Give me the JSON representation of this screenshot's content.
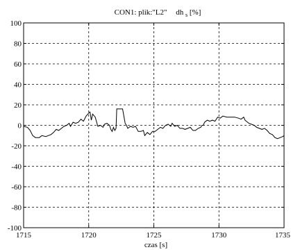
{
  "chart_data": {
    "type": "line",
    "title_main": "CON1: plik:\"L2\"",
    "title_var": "dh",
    "title_sub": "s",
    "title_unit": "[%]",
    "xlabel": "czas [s]",
    "ylabel": "",
    "xlim": [
      1715,
      1735
    ],
    "ylim": [
      -100,
      100
    ],
    "grid": true,
    "x_ticks": [
      1715,
      1720,
      1725,
      1730,
      1735
    ],
    "y_ticks": [
      100,
      80,
      60,
      40,
      20,
      0,
      -20,
      -40,
      -60,
      -80,
      -100
    ],
    "series": [
      {
        "color": "#000000",
        "points": [
          [
            1715.0,
            -1
          ],
          [
            1715.3,
            -2
          ],
          [
            1715.5,
            -5
          ],
          [
            1715.7,
            -10
          ],
          [
            1715.9,
            -12
          ],
          [
            1716.2,
            -12
          ],
          [
            1716.4,
            -10
          ],
          [
            1716.7,
            -11
          ],
          [
            1716.9,
            -10
          ],
          [
            1717.1,
            -9
          ],
          [
            1717.3,
            -7
          ],
          [
            1717.5,
            -4
          ],
          [
            1717.7,
            -5
          ],
          [
            1717.9,
            -3
          ],
          [
            1718.1,
            -1
          ],
          [
            1718.3,
            0
          ],
          [
            1718.5,
            2
          ],
          [
            1718.6,
            -1
          ],
          [
            1718.8,
            3
          ],
          [
            1719.0,
            2
          ],
          [
            1719.2,
            3
          ],
          [
            1719.4,
            6
          ],
          [
            1719.6,
            4
          ],
          [
            1719.8,
            9
          ],
          [
            1720.0,
            12
          ],
          [
            1720.1,
            13
          ],
          [
            1720.2,
            5
          ],
          [
            1720.3,
            11
          ],
          [
            1720.5,
            8
          ],
          [
            1720.7,
            -1
          ],
          [
            1720.9,
            0
          ],
          [
            1721.1,
            -2
          ],
          [
            1721.2,
            1
          ],
          [
            1721.4,
            2
          ],
          [
            1721.6,
            0
          ],
          [
            1721.7,
            -4
          ],
          [
            1721.8,
            -6
          ],
          [
            1721.9,
            -2
          ],
          [
            1722.0,
            -5
          ],
          [
            1722.1,
            -3
          ],
          [
            1722.15,
            16
          ],
          [
            1722.6,
            16
          ],
          [
            1722.8,
            2
          ],
          [
            1722.9,
            0
          ],
          [
            1723.0,
            -3
          ],
          [
            1723.2,
            -1
          ],
          [
            1723.4,
            -2
          ],
          [
            1723.6,
            -1
          ],
          [
            1723.8,
            -6
          ],
          [
            1724.0,
            -6
          ],
          [
            1724.2,
            -5
          ],
          [
            1724.3,
            -10
          ],
          [
            1724.5,
            -7
          ],
          [
            1724.7,
            -9
          ],
          [
            1724.9,
            -6
          ],
          [
            1725.1,
            -6
          ],
          [
            1725.3,
            -4
          ],
          [
            1725.5,
            -2
          ],
          [
            1725.7,
            -3
          ],
          [
            1725.9,
            0
          ],
          [
            1726.1,
            1
          ],
          [
            1726.3,
            -1
          ],
          [
            1726.4,
            2
          ],
          [
            1726.6,
            -1
          ],
          [
            1726.8,
            0
          ],
          [
            1727.0,
            -3
          ],
          [
            1727.2,
            -3
          ],
          [
            1727.4,
            -4
          ],
          [
            1727.6,
            -3
          ],
          [
            1727.8,
            -2
          ],
          [
            1728.0,
            -5
          ],
          [
            1728.2,
            -5
          ],
          [
            1728.4,
            -3
          ],
          [
            1728.6,
            -2
          ],
          [
            1728.7,
            0
          ],
          [
            1728.8,
            0
          ],
          [
            1728.9,
            3
          ],
          [
            1729.1,
            5
          ],
          [
            1729.3,
            4
          ],
          [
            1729.5,
            5
          ],
          [
            1729.7,
            4
          ],
          [
            1729.9,
            8
          ],
          [
            1730.1,
            7
          ],
          [
            1730.3,
            9
          ],
          [
            1730.6,
            8
          ],
          [
            1730.9,
            8
          ],
          [
            1731.2,
            8
          ],
          [
            1731.5,
            7
          ],
          [
            1731.7,
            6
          ],
          [
            1731.9,
            8
          ],
          [
            1732.0,
            5
          ],
          [
            1732.2,
            3
          ],
          [
            1732.3,
            2
          ],
          [
            1732.5,
            1
          ],
          [
            1732.7,
            0
          ],
          [
            1732.9,
            -2
          ],
          [
            1733.1,
            -3
          ],
          [
            1733.3,
            -4
          ],
          [
            1733.5,
            -3
          ],
          [
            1733.7,
            -5
          ],
          [
            1733.9,
            -8
          ],
          [
            1734.1,
            -9
          ],
          [
            1734.3,
            -12
          ],
          [
            1734.5,
            -13
          ],
          [
            1734.7,
            -12
          ],
          [
            1734.9,
            -11
          ],
          [
            1735.0,
            -10
          ]
        ]
      }
    ]
  }
}
